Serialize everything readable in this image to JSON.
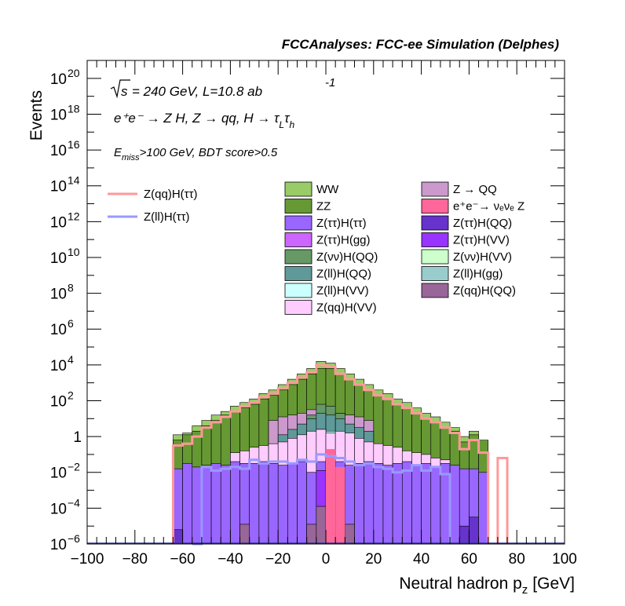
{
  "chart_data": {
    "type": "histogram",
    "title": "FCCAnalyses: FCC-ee Simulation (Delphes)",
    "xlabel": "Neutral hadron p",
    "xlabel_sub": "z",
    "xunit": "[GeV]",
    "ylabel": "Events",
    "xlim": [
      -100,
      100
    ],
    "ylog": true,
    "ylim_exp": [
      -6,
      21
    ],
    "annotations": {
      "line1": "= 240 GeV, L=10.8 ab",
      "line1_sqrt": "s",
      "line1_sup": "-1",
      "line2": "e⁺e⁻ → Z H, Z → qq, H → τ",
      "line2_sub1": "L",
      "line2_tau2": "τ",
      "line2_sub2": "h",
      "line3_E": "E",
      "line3_sub": "miss",
      "line3": ">100 GeV, BDT score>0.5"
    },
    "x_ticks": [
      "−100",
      "−80",
      "−60",
      "−40",
      "−20",
      "0",
      "20",
      "40",
      "60",
      "80",
      "100"
    ],
    "x_tick_values": [
      -100,
      -80,
      -60,
      -40,
      -20,
      0,
      20,
      40,
      60,
      80,
      100
    ],
    "y_ticks": [
      {
        "exp": -6,
        "label": "10",
        "sup": "−6"
      },
      {
        "exp": -4,
        "label": "10",
        "sup": "−4"
      },
      {
        "exp": -2,
        "label": "10",
        "sup": "−2"
      },
      {
        "exp": 0,
        "label": "1",
        "sup": ""
      },
      {
        "exp": 2,
        "label": "10",
        "sup": "2"
      },
      {
        "exp": 4,
        "label": "10",
        "sup": "4"
      },
      {
        "exp": 6,
        "label": "10",
        "sup": "6"
      },
      {
        "exp": 8,
        "label": "10",
        "sup": "8"
      },
      {
        "exp": 10,
        "label": "10",
        "sup": "10"
      },
      {
        "exp": 12,
        "label": "10",
        "sup": "12"
      },
      {
        "exp": 14,
        "label": "10",
        "sup": "14"
      },
      {
        "exp": 16,
        "label": "10",
        "sup": "16"
      },
      {
        "exp": 18,
        "label": "10",
        "sup": "18"
      },
      {
        "exp": 20,
        "label": "10",
        "sup": "20"
      }
    ],
    "bin_edges": [
      -64,
      -60,
      -56,
      -52,
      -48,
      -44,
      -40,
      -36,
      -32,
      -28,
      -24,
      -20,
      -16,
      -12,
      -8,
      -4,
      0,
      4,
      8,
      12,
      16,
      20,
      24,
      28,
      32,
      36,
      40,
      44,
      48,
      52,
      56,
      60,
      64,
      68
    ],
    "stack_series": [
      {
        "name": "Z(ττ)H(ττ)",
        "color": "#9966ff",
        "log10_values": [
          -1.8,
          -1.5,
          -1.7,
          -1.6,
          -1.5,
          -1.6,
          -1.4,
          -1.5,
          -1.5,
          -1.4,
          -1.5,
          -1.6,
          -1.5,
          -1.4,
          -2.0,
          -1.4,
          -1.3,
          -1.4,
          -1.6,
          -1.5,
          -1.4,
          -1.5,
          -1.6,
          -1.5,
          -1.4,
          -1.6,
          -1.5,
          -1.7,
          -1.5,
          -1.6,
          -1.8,
          -1.8,
          -2.0
        ]
      },
      {
        "name": "Z(qq)H(VV)",
        "color": "#ffccff",
        "log10_values": [
          null,
          null,
          null,
          null,
          null,
          null,
          -0.9,
          -0.8,
          -0.6,
          -0.5,
          -0.4,
          -0.3,
          -0.1,
          0.1,
          0.3,
          0.4,
          0.2,
          0.3,
          0.2,
          -0.1,
          -0.3,
          -0.4,
          -0.5,
          -0.6,
          -0.8,
          -0.9,
          -1.0,
          -1.2,
          -1.3,
          null,
          null,
          null,
          null
        ]
      },
      {
        "name": "Z(ll)H(VV)",
        "color": "#ccffff",
        "log10_values": [
          null,
          null,
          null,
          null,
          null,
          null,
          null,
          null,
          null,
          -0.8,
          -0.6,
          -0.4,
          -0.2,
          0.0,
          0.3,
          0.4,
          0.3,
          0.1,
          0.0,
          -0.2,
          -0.4,
          -0.6,
          -0.8,
          null,
          null,
          null,
          null,
          null,
          null,
          null,
          null,
          null,
          null
        ]
      },
      {
        "name": "Z(ll)H(QQ)",
        "color": "#5f9999",
        "log10_values": [
          null,
          null,
          null,
          null,
          null,
          null,
          null,
          null,
          null,
          null,
          null,
          0.1,
          0.4,
          0.7,
          1.0,
          1.3,
          1.2,
          1.0,
          0.7,
          0.5,
          0.3,
          null,
          null,
          null,
          null,
          null,
          null,
          null,
          null,
          null,
          null,
          null,
          null
        ]
      },
      {
        "name": "Z(νν)H(QQ)",
        "color": "#669966",
        "log10_values": [
          null,
          null,
          null,
          null,
          null,
          null,
          null,
          null,
          null,
          null,
          null,
          null,
          null,
          null,
          1.2,
          1.8,
          1.7,
          1.3,
          null,
          null,
          null,
          null,
          null,
          null,
          null,
          null,
          null,
          null,
          null,
          null,
          null,
          null,
          null
        ]
      },
      {
        "name": "Z → QQ",
        "color": "#cc99cc",
        "log10_values": [
          null,
          null,
          null,
          null,
          null,
          null,
          null,
          null,
          null,
          null,
          0.9,
          1.1,
          1.2,
          1.3,
          1.5,
          1.6,
          1.5,
          1.3,
          1.2,
          1.1,
          0.9,
          null,
          null,
          null,
          null,
          null,
          null,
          null,
          null,
          null,
          null,
          null,
          null
        ]
      },
      {
        "name": "ZZ",
        "color": "#669933",
        "log10_values": [
          -0.2,
          0.1,
          0.3,
          0.6,
          0.9,
          1.2,
          1.4,
          1.6,
          1.8,
          2.1,
          2.3,
          2.6,
          2.9,
          3.2,
          3.5,
          3.8,
          3.8,
          3.5,
          3.2,
          2.9,
          2.6,
          2.3,
          2.1,
          1.8,
          1.6,
          1.3,
          1.0,
          0.8,
          0.5,
          0.3,
          -0.3,
          0.1,
          -0.2
        ]
      },
      {
        "name": "WW",
        "color": "#99cc66",
        "log10_values": [
          0.1,
          0.2,
          0.6,
          0.9,
          1.2,
          1.4,
          1.7,
          1.9,
          2.1,
          2.4,
          2.6,
          2.9,
          3.2,
          3.5,
          3.8,
          4.2,
          4.1,
          3.8,
          3.5,
          3.2,
          2.9,
          2.6,
          2.4,
          2.1,
          1.9,
          1.6,
          1.3,
          1.1,
          0.8,
          0.5,
          0.0,
          0.3,
          null
        ]
      }
    ],
    "ee_nunuZ": {
      "name": "e⁺e⁻→ νₑνₑ Z",
      "color": "#ff6699",
      "bins": [
        [
          0,
          4,
          -0.7
        ],
        [
          4,
          8,
          -1.7
        ]
      ]
    },
    "zqqhqq_bars": [
      [
        -36,
        -32,
        -4.9
      ],
      [
        -8,
        -4,
        -4.9
      ],
      [
        -4,
        0,
        -3.9
      ],
      [
        8,
        12,
        -4.9
      ]
    ],
    "small_bars": [
      {
        "color": "#6633cc",
        "bins": [
          [
            -64,
            -60,
            -5.2
          ],
          [
            56,
            60,
            -5.0
          ],
          [
            60,
            64,
            -4.5
          ]
        ]
      },
      {
        "color": "#9933ff",
        "bins": [
          [
            -4,
            0,
            -1.9
          ]
        ]
      }
    ],
    "lines": [
      {
        "name": "Z(qq)H(ττ)",
        "color": "#ff9999",
        "log10_values": [
          -0.5,
          -0.4,
          0.0,
          0.5,
          0.8,
          1.1,
          1.4,
          1.7,
          1.9,
          2.2,
          2.4,
          2.7,
          3.0,
          3.3,
          3.6,
          4.0,
          3.9,
          3.5,
          3.2,
          2.9,
          2.6,
          2.3,
          2.1,
          1.8,
          1.6,
          1.3,
          1.0,
          0.8,
          0.5,
          0.2,
          -0.7,
          -0.2,
          -0.9
        ],
        "extra_bins": [
          [
            72,
            76,
            -1.2
          ]
        ]
      },
      {
        "name": "Z(ll)H(ττ)",
        "color": "#9999ff",
        "log10_values": [
          null,
          null,
          -6.0,
          -1.7,
          -1.9,
          -1.8,
          -1.7,
          -1.8,
          -1.3,
          -1.5,
          -1.4,
          -1.4,
          -1.5,
          -1.3,
          -1.4,
          -1.0,
          -1.1,
          -1.2,
          -1.4,
          -1.6,
          -1.5,
          -1.7,
          -1.8,
          -2.0,
          -1.9,
          -1.6,
          -1.9,
          -1.7,
          -2.1,
          null,
          null,
          null,
          null
        ]
      }
    ],
    "legend_lines": [
      {
        "label": "Z(qq)H(ττ)",
        "color": "#ff9999"
      },
      {
        "label": "Z(ll)H(ττ)",
        "color": "#9999ff"
      }
    ],
    "legend_left": [
      {
        "label": "WW",
        "color": "#99cc66"
      },
      {
        "label": "ZZ",
        "color": "#669933"
      },
      {
        "label": "Z(ττ)H(ττ)",
        "color": "#9966ff"
      },
      {
        "label": "Z(ττ)H(gg)",
        "color": "#cc66ff"
      },
      {
        "label": "Z(νν)H(QQ)",
        "color": "#669966"
      },
      {
        "label": "Z(ll)H(QQ)",
        "color": "#5f9999"
      },
      {
        "label": "Z(ll)H(VV)",
        "color": "#ccffff"
      },
      {
        "label": "Z(qq)H(VV)",
        "color": "#ffccff"
      }
    ],
    "legend_right": [
      {
        "label": "Z → QQ",
        "color": "#cc99cc"
      },
      {
        "label": "e⁺e⁻→ νₑνₑ Z",
        "color": "#ff6699"
      },
      {
        "label": "Z(ττ)H(QQ)",
        "color": "#6633cc"
      },
      {
        "label": "Z(ττ)H(VV)",
        "color": "#9933ff"
      },
      {
        "label": "Z(νν)H(VV)",
        "color": "#ccffcc"
      },
      {
        "label": "Z(ll)H(gg)",
        "color": "#99cccc"
      },
      {
        "label": "Z(qq)H(QQ)",
        "color": "#996699"
      }
    ]
  }
}
